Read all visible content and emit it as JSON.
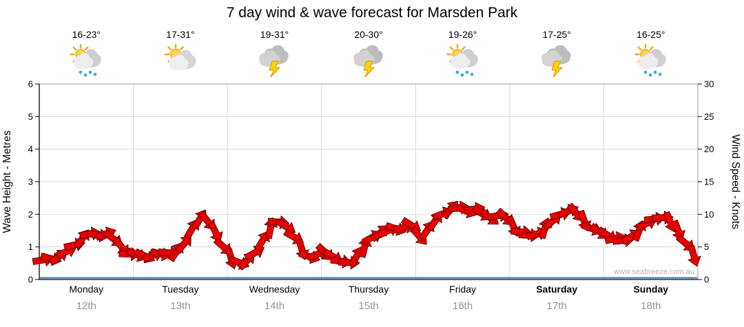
{
  "watermark": "www.seabreeze.com.au",
  "days": [
    {
      "name": "Monday",
      "date": "12th",
      "temp": "16-23°",
      "icon": "sun-cloud-rain",
      "bold": false
    },
    {
      "name": "Tuesday",
      "date": "13th",
      "temp": "17-31°",
      "icon": "sun-cloud",
      "bold": false
    },
    {
      "name": "Wednesday",
      "date": "14th",
      "temp": "19-31°",
      "icon": "storm",
      "bold": false
    },
    {
      "name": "Thursday",
      "date": "15th",
      "temp": "20-30°",
      "icon": "storm",
      "bold": false
    },
    {
      "name": "Friday",
      "date": "16th",
      "temp": "19-26°",
      "icon": "sun-cloud-rain",
      "bold": false
    },
    {
      "name": "Saturday",
      "date": "17th",
      "temp": "17-25°",
      "icon": "storm",
      "bold": true
    },
    {
      "name": "Sunday",
      "date": "18th",
      "temp": "16-25°",
      "icon": "sun-cloud-rain",
      "bold": true
    }
  ],
  "chart_data": {
    "type": "line",
    "title": "7 day wind & wave forecast for Marsden Park",
    "categories": [
      "Monday 12th",
      "Tuesday 13th",
      "Wednesday 14th",
      "Thursday 15th",
      "Friday 16th",
      "Saturday 17th",
      "Sunday 18th"
    ],
    "left_axis": {
      "label": "Wave Height - Metres",
      "range": [
        0,
        6
      ],
      "ticks": [
        0,
        1,
        2,
        3,
        4,
        5,
        6
      ]
    },
    "right_axis": {
      "label": "Wind Speed - Knots",
      "range": [
        0,
        30
      ],
      "ticks": [
        0,
        5,
        10,
        15,
        20,
        25,
        30
      ]
    },
    "grid": true,
    "legend": false,
    "series": [
      {
        "name": "Wind Speed",
        "axis": "right",
        "units": "knots",
        "style": "red-direction-arrows",
        "points_per_day": 12,
        "values": [
          3.0,
          3.2,
          3.5,
          4.3,
          5.3,
          6.3,
          7.0,
          6.8,
          7.0,
          6.2,
          5.0,
          3.9,
          3.8,
          3.6,
          3.7,
          3.9,
          4.1,
          4.3,
          5.5,
          7.8,
          9.3,
          8.9,
          7.2,
          5.0,
          3.2,
          2.6,
          2.9,
          4.1,
          6.0,
          7.9,
          8.8,
          8.1,
          6.5,
          4.6,
          3.5,
          3.9,
          4.1,
          3.5,
          2.8,
          2.6,
          3.6,
          5.0,
          6.5,
          7.2,
          7.5,
          7.8,
          8.0,
          8.3,
          6.6,
          7.6,
          9.0,
          10.1,
          10.8,
          11.0,
          10.5,
          10.8,
          10.1,
          9.5,
          9.8,
          9.5,
          8.1,
          7.3,
          6.8,
          7.0,
          7.9,
          9.0,
          10.0,
          10.5,
          10.2,
          9.0,
          7.8,
          7.3,
          6.8,
          6.3,
          6.0,
          6.6,
          7.5,
          8.6,
          9.3,
          9.5,
          8.8,
          7.5,
          5.5,
          3.6
        ]
      },
      {
        "name": "Wave Height",
        "axis": "left",
        "units": "metres",
        "style": "flat-blue-line",
        "value": 0.05
      }
    ]
  },
  "colors": {
    "arrow_fill": "#e60000",
    "arrow_outline": "#5c0000",
    "wave_line": "#4d7fae",
    "grid_line": "#d9d9d9",
    "axis_line": "#000000",
    "frame_line": "#9a9a9a",
    "date_text": "#949494",
    "watermark_text": "#b3b3b3"
  }
}
